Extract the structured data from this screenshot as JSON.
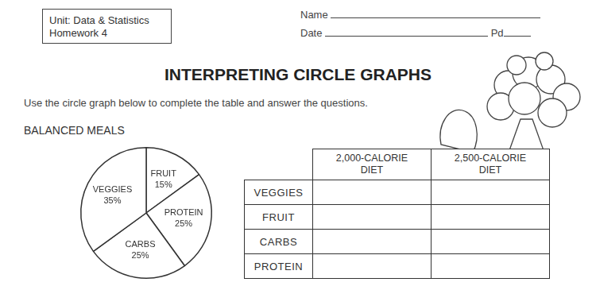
{
  "header": {
    "unit_box": [
      "Unit:  Data & Statistics",
      "Homework 4"
    ],
    "name_label": "Name",
    "date_label": "Date",
    "period_label": "Pd"
  },
  "title": "INTERPRETING CIRCLE GRAPHS",
  "instructions": "Use the circle graph below to complete the table and answer the questions.",
  "chart_data": {
    "type": "pie",
    "title": "BALANCED MEALS",
    "categories": [
      "FRUIT",
      "PROTEIN",
      "CARBS",
      "VEGGIES"
    ],
    "values": [
      15,
      25,
      25,
      35
    ],
    "value_labels": [
      "15%",
      "25%",
      "25%",
      "35%"
    ],
    "data_labels": true,
    "color": "#ffffff"
  },
  "table": {
    "header": [
      [
        "2,000-CALORIE",
        "DIET"
      ],
      [
        "2,500-CALORIE",
        "DIET"
      ]
    ],
    "rows": [
      "VEGGIES",
      "FRUIT",
      "CARBS",
      "PROTEIN"
    ]
  }
}
